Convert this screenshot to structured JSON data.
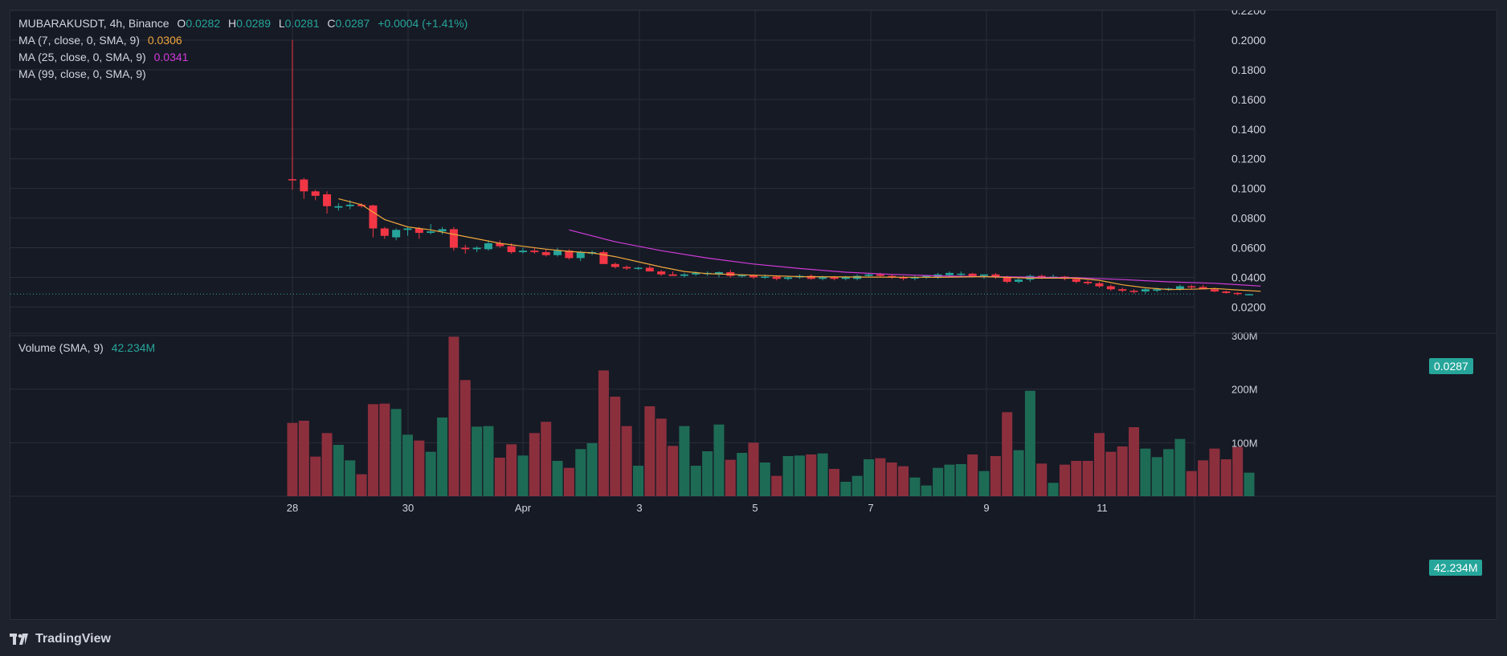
{
  "header": {
    "symbol_line": "MUBARAKUSDT, 4h, Binance",
    "open_label": "O",
    "open_value": "0.0282",
    "high_label": "H",
    "high_value": "0.0289",
    "low_label": "L",
    "low_value": "0.0281",
    "close_label": "C",
    "close_value": "0.0287",
    "change": "+0.0004 (+1.41%)"
  },
  "indicators": {
    "ma7": {
      "label": "MA (7, close, 0, SMA, 9)",
      "value": "0.0306",
      "color": "#f0a73b"
    },
    "ma25": {
      "label": "MA (25, close, 0, SMA, 9)",
      "value": "0.0341",
      "color": "#d03bd9"
    },
    "ma99": {
      "label": "MA (99, close, 0, SMA, 9)",
      "value": ""
    }
  },
  "volume_legend": {
    "label": "Volume (SMA, 9)",
    "value": "42.234M"
  },
  "badges": {
    "price": "0.0287",
    "volume": "42.234M"
  },
  "colors": {
    "up": "#26a69a",
    "down": "#f23645",
    "up_volume": "#1e6b55",
    "down_volume": "#8c2f3d",
    "background": "#161a25",
    "grid": "#2a2e39",
    "text": "#d1d4dc"
  },
  "branding": {
    "logo_text": "TradingView",
    "logo_icon": "tradingview-logo-icon"
  },
  "chart_data": {
    "type": "candlestick",
    "x_tick_labels": [
      "28",
      "30",
      "Apr",
      "3",
      "5",
      "7",
      "9",
      "11"
    ],
    "price_axis": {
      "ticks": [
        "0.0200",
        "0.0400",
        "0.0600",
        "0.0800",
        "0.1000",
        "0.1200",
        "0.1400",
        "0.1600",
        "0.1800",
        "0.2000",
        "0.2200"
      ],
      "ylim": [
        0.011,
        0.22
      ]
    },
    "volume_axis": {
      "ticks": [
        "100M",
        "200M",
        "300M"
      ],
      "ylim": [
        0,
        300
      ]
    },
    "candles": [
      {
        "o": 0.1062,
        "h": 0.2,
        "l": 0.099,
        "c": 0.106,
        "v": 137
      },
      {
        "o": 0.106,
        "h": 0.107,
        "l": 0.093,
        "c": 0.098,
        "v": 141
      },
      {
        "o": 0.098,
        "h": 0.099,
        "l": 0.092,
        "c": 0.095,
        "v": 74
      },
      {
        "o": 0.096,
        "h": 0.098,
        "l": 0.083,
        "c": 0.088,
        "v": 118
      },
      {
        "o": 0.087,
        "h": 0.09,
        "l": 0.085,
        "c": 0.088,
        "v": 96
      },
      {
        "o": 0.088,
        "h": 0.092,
        "l": 0.086,
        "c": 0.089,
        "v": 67
      },
      {
        "o": 0.089,
        "h": 0.09,
        "l": 0.087,
        "c": 0.088,
        "v": 41
      },
      {
        "o": 0.0885,
        "h": 0.089,
        "l": 0.067,
        "c": 0.073,
        "v": 172
      },
      {
        "o": 0.073,
        "h": 0.074,
        "l": 0.066,
        "c": 0.068,
        "v": 173
      },
      {
        "o": 0.067,
        "h": 0.073,
        "l": 0.065,
        "c": 0.072,
        "v": 163
      },
      {
        "o": 0.072,
        "h": 0.074,
        "l": 0.068,
        "c": 0.073,
        "v": 115
      },
      {
        "o": 0.073,
        "h": 0.074,
        "l": 0.066,
        "c": 0.07,
        "v": 104
      },
      {
        "o": 0.07,
        "h": 0.076,
        "l": 0.069,
        "c": 0.071,
        "v": 83
      },
      {
        "o": 0.071,
        "h": 0.074,
        "l": 0.069,
        "c": 0.0725,
        "v": 147
      },
      {
        "o": 0.0725,
        "h": 0.074,
        "l": 0.058,
        "c": 0.06,
        "v": 298
      },
      {
        "o": 0.06,
        "h": 0.062,
        "l": 0.056,
        "c": 0.059,
        "v": 217
      },
      {
        "o": 0.059,
        "h": 0.061,
        "l": 0.057,
        "c": 0.06,
        "v": 130
      },
      {
        "o": 0.059,
        "h": 0.065,
        "l": 0.058,
        "c": 0.063,
        "v": 131
      },
      {
        "o": 0.063,
        "h": 0.065,
        "l": 0.06,
        "c": 0.061,
        "v": 72
      },
      {
        "o": 0.061,
        "h": 0.063,
        "l": 0.056,
        "c": 0.057,
        "v": 97
      },
      {
        "o": 0.057,
        "h": 0.06,
        "l": 0.056,
        "c": 0.058,
        "v": 76
      },
      {
        "o": 0.058,
        "h": 0.06,
        "l": 0.056,
        "c": 0.057,
        "v": 118
      },
      {
        "o": 0.057,
        "h": 0.059,
        "l": 0.054,
        "c": 0.055,
        "v": 139
      },
      {
        "o": 0.055,
        "h": 0.06,
        "l": 0.054,
        "c": 0.058,
        "v": 66
      },
      {
        "o": 0.058,
        "h": 0.059,
        "l": 0.052,
        "c": 0.053,
        "v": 53
      },
      {
        "o": 0.053,
        "h": 0.058,
        "l": 0.051,
        "c": 0.057,
        "v": 88
      },
      {
        "o": 0.056,
        "h": 0.058,
        "l": 0.055,
        "c": 0.057,
        "v": 99
      },
      {
        "o": 0.057,
        "h": 0.058,
        "l": 0.049,
        "c": 0.049,
        "v": 235
      },
      {
        "o": 0.049,
        "h": 0.05,
        "l": 0.046,
        "c": 0.047,
        "v": 186
      },
      {
        "o": 0.047,
        "h": 0.048,
        "l": 0.045,
        "c": 0.046,
        "v": 131
      },
      {
        "o": 0.046,
        "h": 0.047,
        "l": 0.045,
        "c": 0.0465,
        "v": 57
      },
      {
        "o": 0.0465,
        "h": 0.048,
        "l": 0.044,
        "c": 0.044,
        "v": 168
      },
      {
        "o": 0.044,
        "h": 0.045,
        "l": 0.041,
        "c": 0.042,
        "v": 145
      },
      {
        "o": 0.042,
        "h": 0.044,
        "l": 0.041,
        "c": 0.041,
        "v": 94
      },
      {
        "o": 0.041,
        "h": 0.043,
        "l": 0.04,
        "c": 0.042,
        "v": 131
      },
      {
        "o": 0.042,
        "h": 0.044,
        "l": 0.041,
        "c": 0.043,
        "v": 57
      },
      {
        "o": 0.0425,
        "h": 0.044,
        "l": 0.041,
        "c": 0.043,
        "v": 84
      },
      {
        "o": 0.042,
        "h": 0.044,
        "l": 0.04,
        "c": 0.0435,
        "v": 134
      },
      {
        "o": 0.0435,
        "h": 0.045,
        "l": 0.04,
        "c": 0.041,
        "v": 68
      },
      {
        "o": 0.041,
        "h": 0.042,
        "l": 0.04,
        "c": 0.0415,
        "v": 81
      },
      {
        "o": 0.0415,
        "h": 0.042,
        "l": 0.039,
        "c": 0.04,
        "v": 100
      },
      {
        "o": 0.04,
        "h": 0.042,
        "l": 0.039,
        "c": 0.0405,
        "v": 63
      },
      {
        "o": 0.0405,
        "h": 0.041,
        "l": 0.038,
        "c": 0.039,
        "v": 38
      },
      {
        "o": 0.039,
        "h": 0.041,
        "l": 0.038,
        "c": 0.04,
        "v": 75
      },
      {
        "o": 0.04,
        "h": 0.042,
        "l": 0.039,
        "c": 0.041,
        "v": 76
      },
      {
        "o": 0.041,
        "h": 0.042,
        "l": 0.0385,
        "c": 0.039,
        "v": 78
      },
      {
        "o": 0.039,
        "h": 0.041,
        "l": 0.038,
        "c": 0.04,
        "v": 80
      },
      {
        "o": 0.04,
        "h": 0.041,
        "l": 0.038,
        "c": 0.039,
        "v": 51
      },
      {
        "o": 0.039,
        "h": 0.041,
        "l": 0.038,
        "c": 0.04,
        "v": 27
      },
      {
        "o": 0.039,
        "h": 0.042,
        "l": 0.038,
        "c": 0.041,
        "v": 38
      },
      {
        "o": 0.041,
        "h": 0.043,
        "l": 0.04,
        "c": 0.042,
        "v": 69
      },
      {
        "o": 0.042,
        "h": 0.043,
        "l": 0.04,
        "c": 0.041,
        "v": 71
      },
      {
        "o": 0.041,
        "h": 0.042,
        "l": 0.039,
        "c": 0.04,
        "v": 63
      },
      {
        "o": 0.04,
        "h": 0.041,
        "l": 0.038,
        "c": 0.0395,
        "v": 56
      },
      {
        "o": 0.0395,
        "h": 0.041,
        "l": 0.038,
        "c": 0.04,
        "v": 35
      },
      {
        "o": 0.04,
        "h": 0.041,
        "l": 0.039,
        "c": 0.041,
        "v": 20
      },
      {
        "o": 0.04,
        "h": 0.043,
        "l": 0.039,
        "c": 0.042,
        "v": 53
      },
      {
        "o": 0.0415,
        "h": 0.044,
        "l": 0.04,
        "c": 0.043,
        "v": 59
      },
      {
        "o": 0.042,
        "h": 0.044,
        "l": 0.041,
        "c": 0.0425,
        "v": 60
      },
      {
        "o": 0.0425,
        "h": 0.043,
        "l": 0.04,
        "c": 0.041,
        "v": 78
      },
      {
        "o": 0.041,
        "h": 0.042,
        "l": 0.039,
        "c": 0.042,
        "v": 47
      },
      {
        "o": 0.042,
        "h": 0.043,
        "l": 0.039,
        "c": 0.04,
        "v": 75
      },
      {
        "o": 0.04,
        "h": 0.041,
        "l": 0.036,
        "c": 0.037,
        "v": 157
      },
      {
        "o": 0.037,
        "h": 0.04,
        "l": 0.036,
        "c": 0.0385,
        "v": 86
      },
      {
        "o": 0.0385,
        "h": 0.042,
        "l": 0.037,
        "c": 0.041,
        "v": 197
      },
      {
        "o": 0.041,
        "h": 0.042,
        "l": 0.039,
        "c": 0.04,
        "v": 61
      },
      {
        "o": 0.04,
        "h": 0.042,
        "l": 0.039,
        "c": 0.0405,
        "v": 25
      },
      {
        "o": 0.0405,
        "h": 0.041,
        "l": 0.038,
        "c": 0.039,
        "v": 59
      },
      {
        "o": 0.039,
        "h": 0.04,
        "l": 0.036,
        "c": 0.037,
        "v": 66
      },
      {
        "o": 0.037,
        "h": 0.038,
        "l": 0.035,
        "c": 0.036,
        "v": 66
      },
      {
        "o": 0.036,
        "h": 0.037,
        "l": 0.033,
        "c": 0.034,
        "v": 118
      },
      {
        "o": 0.034,
        "h": 0.035,
        "l": 0.031,
        "c": 0.032,
        "v": 83
      },
      {
        "o": 0.032,
        "h": 0.033,
        "l": 0.03,
        "c": 0.031,
        "v": 93
      },
      {
        "o": 0.031,
        "h": 0.032,
        "l": 0.029,
        "c": 0.0305,
        "v": 129
      },
      {
        "o": 0.0305,
        "h": 0.033,
        "l": 0.029,
        "c": 0.032,
        "v": 89
      },
      {
        "o": 0.031,
        "h": 0.033,
        "l": 0.03,
        "c": 0.032,
        "v": 73
      },
      {
        "o": 0.032,
        "h": 0.033,
        "l": 0.031,
        "c": 0.0325,
        "v": 88
      },
      {
        "o": 0.032,
        "h": 0.035,
        "l": 0.031,
        "c": 0.034,
        "v": 107
      },
      {
        "o": 0.034,
        "h": 0.035,
        "l": 0.032,
        "c": 0.0335,
        "v": 47
      },
      {
        "o": 0.0335,
        "h": 0.035,
        "l": 0.032,
        "c": 0.032,
        "v": 67
      },
      {
        "o": 0.032,
        "h": 0.033,
        "l": 0.03,
        "c": 0.0305,
        "v": 89
      },
      {
        "o": 0.0305,
        "h": 0.031,
        "l": 0.029,
        "c": 0.0295,
        "v": 69
      },
      {
        "o": 0.0295,
        "h": 0.03,
        "l": 0.028,
        "c": 0.029,
        "v": 92
      },
      {
        "o": 0.0282,
        "h": 0.0289,
        "l": 0.0281,
        "c": 0.0287,
        "v": 44
      }
    ],
    "ma7_series": [
      [
        4,
        0.093
      ],
      [
        6,
        0.089
      ],
      [
        8,
        0.079
      ],
      [
        10,
        0.074
      ],
      [
        12,
        0.072
      ],
      [
        14,
        0.069
      ],
      [
        16,
        0.066
      ],
      [
        18,
        0.063
      ],
      [
        20,
        0.061
      ],
      [
        22,
        0.059
      ],
      [
        24,
        0.0575
      ],
      [
        26,
        0.0565
      ],
      [
        28,
        0.054
      ],
      [
        30,
        0.0505
      ],
      [
        32,
        0.047
      ],
      [
        34,
        0.044
      ],
      [
        36,
        0.0425
      ],
      [
        38,
        0.042
      ],
      [
        40,
        0.0415
      ],
      [
        44,
        0.0405
      ],
      [
        50,
        0.0402
      ],
      [
        56,
        0.04
      ],
      [
        60,
        0.0405
      ],
      [
        64,
        0.0395
      ],
      [
        68,
        0.0395
      ],
      [
        70,
        0.038
      ],
      [
        72,
        0.035
      ],
      [
        74,
        0.033
      ],
      [
        76,
        0.0318
      ],
      [
        78,
        0.032
      ],
      [
        80,
        0.0325
      ],
      [
        82,
        0.0315
      ],
      [
        84,
        0.0306
      ]
    ],
    "ma25_series": [
      [
        24,
        0.072
      ],
      [
        28,
        0.064
      ],
      [
        32,
        0.058
      ],
      [
        36,
        0.053
      ],
      [
        40,
        0.049
      ],
      [
        44,
        0.046
      ],
      [
        48,
        0.0435
      ],
      [
        52,
        0.042
      ],
      [
        56,
        0.041
      ],
      [
        60,
        0.0405
      ],
      [
        64,
        0.0402
      ],
      [
        68,
        0.0398
      ],
      [
        72,
        0.0385
      ],
      [
        76,
        0.037
      ],
      [
        80,
        0.036
      ],
      [
        84,
        0.0341
      ]
    ],
    "last_price": 0.0287
  }
}
